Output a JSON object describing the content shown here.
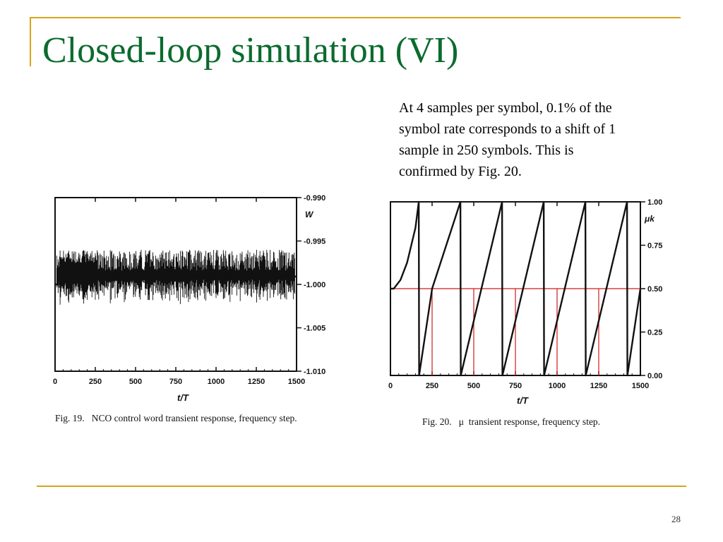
{
  "slide": {
    "title": "Closed-loop simulation (VI)",
    "body_lines": [
      "At 4 samples per symbol, 0.1% of the",
      "symbol rate corresponds to a shift of 1",
      "sample in 250 symbols. This is",
      "confirmed by Fig. 20."
    ],
    "page_number": "28",
    "colors": {
      "title": "#0b6b2e",
      "rule": "#d8a21a",
      "guide": "#d11a1a"
    }
  },
  "chart_data": [
    {
      "type": "line",
      "caption": "Fig. 19.   NCO control word transient response, frequency step.",
      "xlabel": "t/T",
      "ylabel": "W",
      "x_ticks": [
        "0",
        "250",
        "500",
        "750",
        "1000",
        "1250",
        "1500"
      ],
      "y_ticks": [
        "-0.990",
        "-0.995",
        "-1.000",
        "-1.005",
        "-1.010"
      ],
      "xlim": [
        0,
        1500
      ],
      "ylim": [
        -1.01,
        -0.99
      ],
      "y_axis_side": "right",
      "series": [
        {
          "x": [
            0,
            20,
            50,
            100,
            150,
            200,
            300,
            400,
            500,
            600,
            700,
            800,
            900,
            1000,
            1100,
            1200,
            1300,
            1400,
            1500
          ],
          "y": [
            -1.0,
            -1.0,
            -0.9995,
            -0.9992,
            -0.9991,
            -0.9991,
            -0.9991,
            -0.9991,
            -0.9992,
            -0.9992,
            -0.9992,
            -0.9991,
            -0.9991,
            -0.9991,
            -0.9991,
            -0.9991,
            -0.9991,
            -0.9991,
            -0.9991
          ]
        }
      ],
      "spikes_between": [
        -1.0025,
        -0.996
      ]
    },
    {
      "type": "line",
      "caption": "Fig. 20.   μ  transient response, frequency step.",
      "xlabel": "t/T",
      "ylabel": "μk",
      "x_ticks": [
        "0",
        "250",
        "500",
        "750",
        "1000",
        "1250",
        "1500"
      ],
      "y_ticks": [
        "1.00",
        "0.75",
        "0.50",
        "0.25",
        "0.00"
      ],
      "xlim": [
        0,
        1500
      ],
      "ylim": [
        0,
        1
      ],
      "y_axis_side": "right",
      "series": [
        {
          "x": [
            0,
            20,
            60,
            100,
            150,
            170,
            172,
            250,
            420,
            422,
            670,
            672,
            920,
            922,
            1170,
            1172,
            1420,
            1422,
            1500
          ],
          "y": [
            0.5,
            0.5,
            0.55,
            0.65,
            0.85,
            1.0,
            0.0,
            0.5,
            1.0,
            0.0,
            1.0,
            0.0,
            1.0,
            0.0,
            1.0,
            0.0,
            1.0,
            0.0,
            0.5
          ]
        }
      ],
      "reference_line_y": 0.5,
      "crossing_x": [
        250,
        500,
        750,
        1000,
        1250
      ]
    }
  ]
}
